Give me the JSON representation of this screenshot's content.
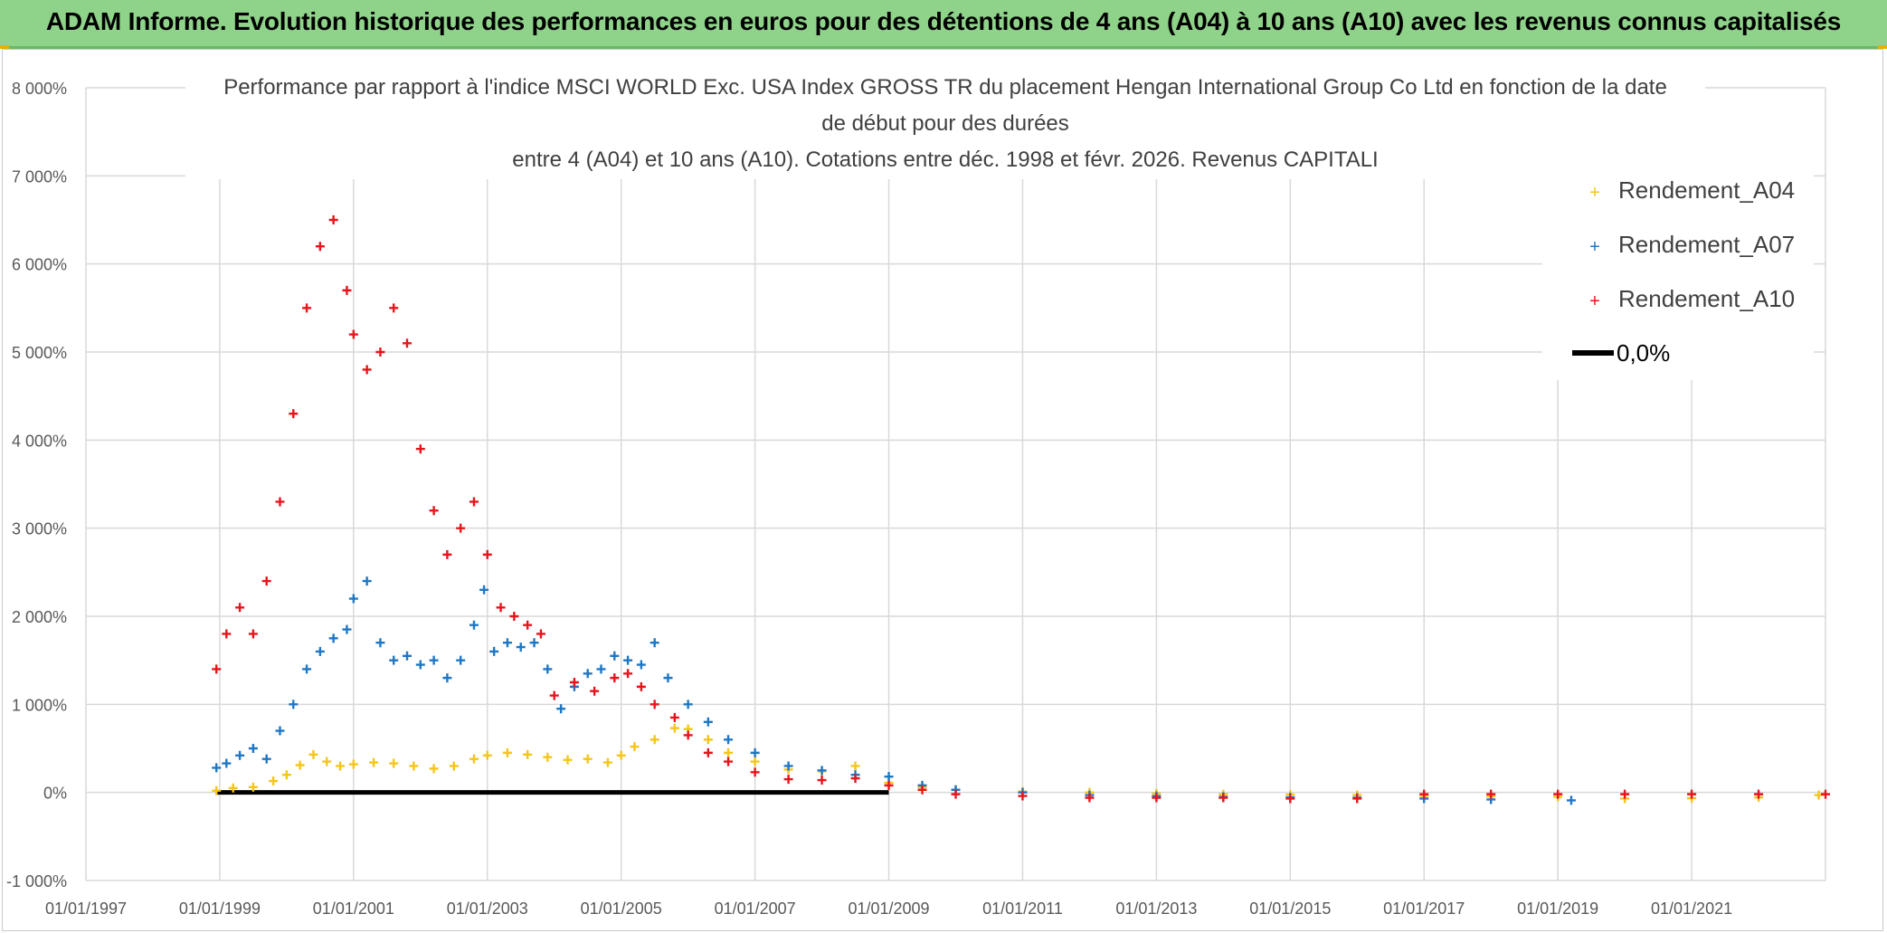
{
  "banner": {
    "title": "ADAM Informe. Evolution historique des performances en euros pour des détentions de 4 ans (A04) à 10 ans (A10) avec les revenus connus capitalisés"
  },
  "chart_data": {
    "type": "scatter",
    "title_lines": [
      "Performance par rapport à l'indice MSCI WORLD Exc. USA Index GROSS TR  du placement Hengan International Group Co Ltd en fonction de la date",
      "de début pour des durées",
      "entre 4 (A04) et 10 ans (A10). Cotations entre déc. 1998 et févr. 2026. Revenus CAPITALI"
    ],
    "ylim": [
      -1000,
      8000
    ],
    "yticks": [
      -1000,
      0,
      1000,
      2000,
      3000,
      4000,
      5000,
      6000,
      7000,
      8000
    ],
    "ytick_labels": [
      "-1 000%",
      "0%",
      "1 000%",
      "2 000%",
      "3 000%",
      "4 000%",
      "5 000%",
      "6 000%",
      "7 000%",
      "8 000%"
    ],
    "xlim": [
      1997.0,
      2023.0
    ],
    "xticks": [
      1997,
      1999,
      2001,
      2003,
      2005,
      2007,
      2009,
      2011,
      2013,
      2015,
      2017,
      2019,
      2021
    ],
    "xtick_labels": [
      "01/01/1997",
      "01/01/1999",
      "01/01/2001",
      "01/01/2003",
      "01/01/2005",
      "01/01/2007",
      "01/01/2009",
      "01/01/2011",
      "01/01/2013",
      "01/01/2015",
      "01/01/2017",
      "01/01/2019",
      "01/01/2021"
    ],
    "grid": true,
    "legend_position": "top-right",
    "series": [
      {
        "name": "Rendement_A04",
        "color": "#f5c518",
        "marker": "plus",
        "x": [
          1998.95,
          1999.2,
          1999.5,
          1999.8,
          2000.0,
          2000.2,
          2000.4,
          2000.6,
          2000.8,
          2001.0,
          2001.3,
          2001.6,
          2001.9,
          2002.2,
          2002.5,
          2002.8,
          2003.0,
          2003.3,
          2003.6,
          2003.9,
          2004.2,
          2004.5,
          2004.8,
          2005.0,
          2005.2,
          2005.5,
          2005.8,
          2006.0,
          2006.3,
          2006.6,
          2007.0,
          2007.5,
          2008.0,
          2008.5,
          2009.0,
          2009.5,
          2010.0,
          2011.0,
          2012.0,
          2013.0,
          2014.0,
          2015.0,
          2016.0,
          2017.0,
          2018.0,
          2019.0,
          2020.0,
          2021.0,
          2022.0,
          2022.9
        ],
        "y": [
          20,
          50,
          60,
          130,
          200,
          310,
          430,
          350,
          300,
          320,
          340,
          330,
          300,
          270,
          300,
          380,
          420,
          450,
          430,
          400,
          370,
          380,
          340,
          420,
          520,
          600,
          730,
          720,
          600,
          450,
          350,
          260,
          240,
          300,
          110,
          60,
          30,
          10,
          0,
          -10,
          -20,
          -25,
          -30,
          -40,
          -45,
          -50,
          -70,
          -65,
          -55,
          -30
        ]
      },
      {
        "name": "Rendement_A07",
        "color": "#1f77c4",
        "marker": "plus",
        "x": [
          1998.95,
          1999.1,
          1999.3,
          1999.5,
          1999.7,
          1999.9,
          2000.1,
          2000.3,
          2000.5,
          2000.7,
          2000.9,
          2001.0,
          2001.2,
          2001.4,
          2001.6,
          2001.8,
          2002.0,
          2002.2,
          2002.4,
          2002.6,
          2002.8,
          2002.95,
          2003.1,
          2003.3,
          2003.5,
          2003.7,
          2003.9,
          2004.1,
          2004.3,
          2004.5,
          2004.7,
          2004.9,
          2005.1,
          2005.3,
          2005.5,
          2005.7,
          2006.0,
          2006.3,
          2006.6,
          2007.0,
          2007.5,
          2008.0,
          2008.5,
          2009.0,
          2009.5,
          2010.0,
          2011.0,
          2012.0,
          2013.0,
          2014.0,
          2015.0,
          2016.0,
          2017.0,
          2018.0,
          2019.2
        ],
        "y": [
          280,
          330,
          420,
          500,
          380,
          700,
          1000,
          1400,
          1600,
          1750,
          1850,
          2200,
          2400,
          1700,
          1500,
          1550,
          1450,
          1500,
          1300,
          1500,
          1900,
          2300,
          1600,
          1700,
          1650,
          1700,
          1400,
          950,
          1200,
          1350,
          1400,
          1550,
          1500,
          1450,
          1700,
          1300,
          1000,
          800,
          600,
          450,
          300,
          250,
          200,
          180,
          80,
          30,
          0,
          -30,
          -40,
          -50,
          -55,
          -60,
          -70,
          -80,
          -90
        ]
      },
      {
        "name": "Rendement_A10",
        "color": "#e8141c",
        "marker": "plus",
        "x": [
          1998.95,
          1999.1,
          1999.3,
          1999.5,
          1999.7,
          1999.9,
          2000.1,
          2000.3,
          2000.5,
          2000.7,
          2000.9,
          2001.0,
          2001.2,
          2001.4,
          2001.6,
          2001.8,
          2002.0,
          2002.2,
          2002.4,
          2002.6,
          2002.8,
          2003.0,
          2003.2,
          2003.4,
          2003.6,
          2003.8,
          2004.0,
          2004.3,
          2004.6,
          2004.9,
          2005.1,
          2005.3,
          2005.5,
          2005.8,
          2006.0,
          2006.3,
          2006.6,
          2007.0,
          2007.5,
          2008.0,
          2008.5,
          2009.0,
          2009.5,
          2010.0,
          2011.0,
          2012.0,
          2013.0,
          2014.0,
          2015.0,
          2016.0,
          2017.0,
          2018.0,
          2019.0,
          2020.0,
          2021.0,
          2022.0,
          2023.0
        ],
        "y": [
          1400,
          1800,
          2100,
          1800,
          2400,
          3300,
          4300,
          5500,
          6200,
          6500,
          5700,
          5200,
          4800,
          5000,
          5500,
          5100,
          3900,
          3200,
          2700,
          3000,
          3300,
          2700,
          2100,
          2000,
          1900,
          1800,
          1100,
          1250,
          1150,
          1300,
          1350,
          1200,
          1000,
          850,
          650,
          450,
          350,
          230,
          150,
          140,
          160,
          80,
          30,
          -20,
          -40,
          -60,
          -60,
          -60,
          -70,
          -70,
          -20,
          -20,
          -20,
          -20,
          -20,
          -20,
          -20
        ]
      }
    ],
    "reference_line": {
      "name": "0,0%",
      "color": "#000000",
      "y": 0,
      "x_range": [
        1998.95,
        2009.0
      ]
    }
  }
}
